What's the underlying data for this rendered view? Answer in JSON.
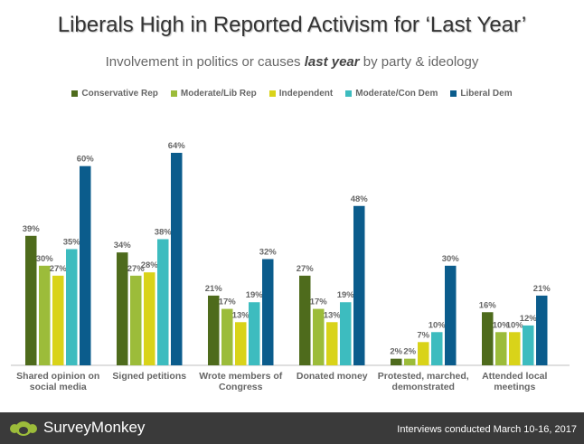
{
  "title_text": "Liberals High in Reported Activism for  ‘Last Year’",
  "subtitle": {
    "before": "Involvement in politics or causes ",
    "emph": "last year",
    "after": " by party & ideology"
  },
  "footer": {
    "brand": "SurveyMonkey",
    "note": "Interviews conducted March 10-16, 2017"
  },
  "icons": {
    "logo": "surveymonkey-logo-icon"
  },
  "chart_data": {
    "type": "bar",
    "categories": [
      [
        "Shared opinion on",
        "social media"
      ],
      [
        "Signed petitions"
      ],
      [
        "Wrote members of",
        "Congress"
      ],
      [
        "Donated money"
      ],
      [
        "Protested, marched,",
        "demonstrated"
      ],
      [
        "Attended local",
        "meetings"
      ]
    ],
    "series": [
      {
        "name": "Conservative Rep",
        "color": "#4e6b1c",
        "values": [
          39,
          34,
          21,
          27,
          2,
          16
        ]
      },
      {
        "name": "Moderate/Lib Rep",
        "color": "#9cbc3a",
        "values": [
          30,
          27,
          17,
          17,
          2,
          10
        ]
      },
      {
        "name": "Independent",
        "color": "#d9d319",
        "values": [
          27,
          28,
          13,
          13,
          7,
          10
        ]
      },
      {
        "name": "Moderate/Con Dem",
        "color": "#3dbcbf",
        "values": [
          35,
          38,
          19,
          19,
          10,
          12
        ]
      },
      {
        "name": "Liberal Dem",
        "color": "#0b5c8c",
        "values": [
          60,
          64,
          32,
          48,
          30,
          21
        ]
      }
    ],
    "value_suffix": "%",
    "ylim": [
      0,
      70
    ],
    "legend_position": "top",
    "grid": false
  }
}
